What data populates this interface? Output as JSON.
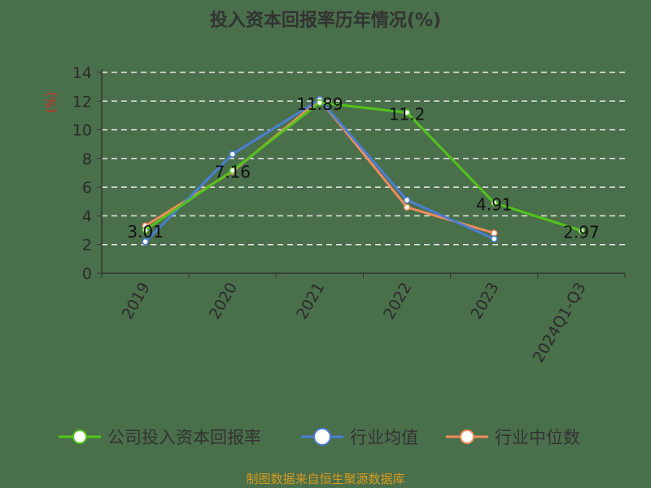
{
  "chart_data": {
    "type": "line",
    "title": "投入资本回报率历年情况(%)",
    "ylabel": "(%)",
    "xlabel": "",
    "categories": [
      "2019",
      "2020",
      "2021",
      "2022",
      "2023",
      "2024Q1-Q3"
    ],
    "ylim": [
      0,
      14
    ],
    "yticks": [
      0,
      2,
      4,
      6,
      8,
      10,
      12,
      14
    ],
    "grid": true,
    "legend_position": "bottom",
    "series": [
      {
        "name": "公司投入资本回报率",
        "color": "#52c41a",
        "values": [
          3.01,
          7.16,
          11.89,
          11.2,
          4.91,
          2.97
        ],
        "labels": [
          "3.01",
          "7.16",
          "11.89",
          "11.2",
          "4.91",
          "2.97"
        ]
      },
      {
        "name": "行业均值",
        "color": "#4a7fd4",
        "values": [
          2.2,
          8.3,
          12.1,
          5.1,
          2.4,
          null
        ]
      },
      {
        "name": "行业中位数",
        "color": "#f08c5a",
        "values": [
          3.3,
          7.1,
          12.1,
          4.6,
          2.8,
          null
        ]
      }
    ],
    "source": "制图数据来自恒生聚源数据库"
  }
}
